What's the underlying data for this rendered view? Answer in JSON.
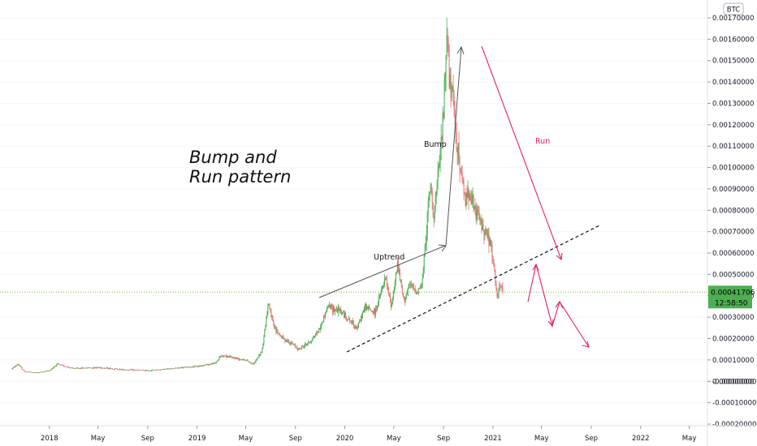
{
  "symbol_badge": "BTC",
  "annotations": {
    "title_line1": "Bump and",
    "title_line2": "Run pattern",
    "uptrend": "Uptrend",
    "bump": "Bump",
    "run": "Run"
  },
  "price_tag": {
    "value": "0.00041706",
    "countdown": "12:58:50",
    "color": "#4caf50"
  },
  "colors": {
    "up": "#4caf50",
    "down": "#e57373",
    "run_arrow": "#e91e63",
    "uptrend_arrow": "#555555"
  },
  "chart_data": {
    "type": "candlestick",
    "xlim": [
      "2017-09-01",
      "2022-06-15"
    ],
    "ylim": [
      -0.0002,
      0.0017
    ],
    "y_ticks": [
      "0.00170000",
      "0.00160000",
      "0.00150000",
      "0.00140000",
      "0.00130000",
      "0.00120000",
      "0.00110000",
      "0.00100000",
      "0.00090000",
      "0.00080000",
      "0.00070000",
      "0.00060000",
      "0.00050000",
      "0.00040000",
      "0.00030000",
      "0.00020000",
      "0.00010000",
      "0.00000000",
      "-0.00000000",
      "-0.00010000",
      "-0.00020000"
    ],
    "y_tick_values": [
      0.0017,
      0.0016,
      0.0015,
      0.0014,
      0.0013,
      0.0012,
      0.0011,
      0.001,
      0.0009,
      0.0008,
      0.0007,
      0.0006,
      0.0005,
      0.0004,
      0.0003,
      0.0002,
      0.0001,
      0.0,
      -1e-07,
      -0.0001,
      -0.0002
    ],
    "x_ticks": [
      {
        "label": "2018",
        "date": "2018-01-01"
      },
      {
        "label": "May",
        "date": "2018-05-01"
      },
      {
        "label": "Sep",
        "date": "2018-09-01"
      },
      {
        "label": "2019",
        "date": "2019-01-01"
      },
      {
        "label": "May",
        "date": "2019-05-01"
      },
      {
        "label": "Sep",
        "date": "2019-09-01"
      },
      {
        "label": "2020",
        "date": "2020-01-01"
      },
      {
        "label": "May",
        "date": "2020-05-01"
      },
      {
        "label": "Sep",
        "date": "2020-09-01"
      },
      {
        "label": "2021",
        "date": "2021-01-01"
      },
      {
        "label": "May",
        "date": "2021-05-01"
      },
      {
        "label": "Sep",
        "date": "2021-09-01"
      },
      {
        "label": "2022",
        "date": "2022-01-01"
      },
      {
        "label": "May",
        "date": "2022-05-01"
      }
    ],
    "price_path": [
      [
        "2017-10-01",
        6e-05
      ],
      [
        "2017-10-15",
        8e-05
      ],
      [
        "2017-11-01",
        4.5e-05
      ],
      [
        "2017-12-01",
        4e-05
      ],
      [
        "2018-01-01",
        5e-05
      ],
      [
        "2018-01-20",
        8e-05
      ],
      [
        "2018-03-01",
        6e-05
      ],
      [
        "2018-05-01",
        6.5e-05
      ],
      [
        "2018-07-01",
        5.5e-05
      ],
      [
        "2018-09-01",
        5e-05
      ],
      [
        "2018-11-01",
        6e-05
      ],
      [
        "2019-01-01",
        7e-05
      ],
      [
        "2019-02-15",
        8.5e-05
      ],
      [
        "2019-03-01",
        0.00012
      ],
      [
        "2019-04-01",
        0.00011
      ],
      [
        "2019-05-01",
        0.0001
      ],
      [
        "2019-05-20",
        8e-05
      ],
      [
        "2019-06-10",
        0.00014
      ],
      [
        "2019-06-26",
        0.00037
      ],
      [
        "2019-07-10",
        0.00025
      ],
      [
        "2019-08-01",
        0.0002
      ],
      [
        "2019-08-20",
        0.00018
      ],
      [
        "2019-09-10",
        0.00015
      ],
      [
        "2019-10-10",
        0.00019
      ],
      [
        "2019-11-01",
        0.00025
      ],
      [
        "2019-11-20",
        0.00035
      ],
      [
        "2019-12-20",
        0.00033
      ],
      [
        "2020-01-15",
        0.00028
      ],
      [
        "2020-02-01",
        0.00025
      ],
      [
        "2020-02-20",
        0.00035
      ],
      [
        "2020-03-15",
        0.00032
      ],
      [
        "2020-04-10",
        0.00048
      ],
      [
        "2020-04-25",
        0.00035
      ],
      [
        "2020-05-10",
        0.00055
      ],
      [
        "2020-05-25",
        0.00038
      ],
      [
        "2020-06-10",
        0.00045
      ],
      [
        "2020-06-25",
        0.00042
      ],
      [
        "2020-07-10",
        0.00045
      ],
      [
        "2020-07-20",
        0.0007
      ],
      [
        "2020-07-30",
        0.00092
      ],
      [
        "2020-08-08",
        0.00078
      ],
      [
        "2020-08-20",
        0.00098
      ],
      [
        "2020-09-01",
        0.00125
      ],
      [
        "2020-09-10",
        0.00168
      ],
      [
        "2020-09-15",
        0.0014
      ],
      [
        "2020-09-25",
        0.0013
      ],
      [
        "2020-10-05",
        0.0011
      ],
      [
        "2020-10-15",
        0.00095
      ],
      [
        "2020-10-25",
        0.00085
      ],
      [
        "2020-11-05",
        0.0009
      ],
      [
        "2020-11-15",
        0.0008
      ],
      [
        "2020-11-25",
        0.00078
      ],
      [
        "2020-12-05",
        0.00072
      ],
      [
        "2020-12-15",
        0.0007
      ],
      [
        "2020-12-28",
        0.00062
      ],
      [
        "2021-01-05",
        0.0005
      ],
      [
        "2021-01-12",
        0.00038
      ],
      [
        "2021-01-18",
        0.00045
      ],
      [
        "2021-01-25",
        0.00041706
      ]
    ]
  }
}
